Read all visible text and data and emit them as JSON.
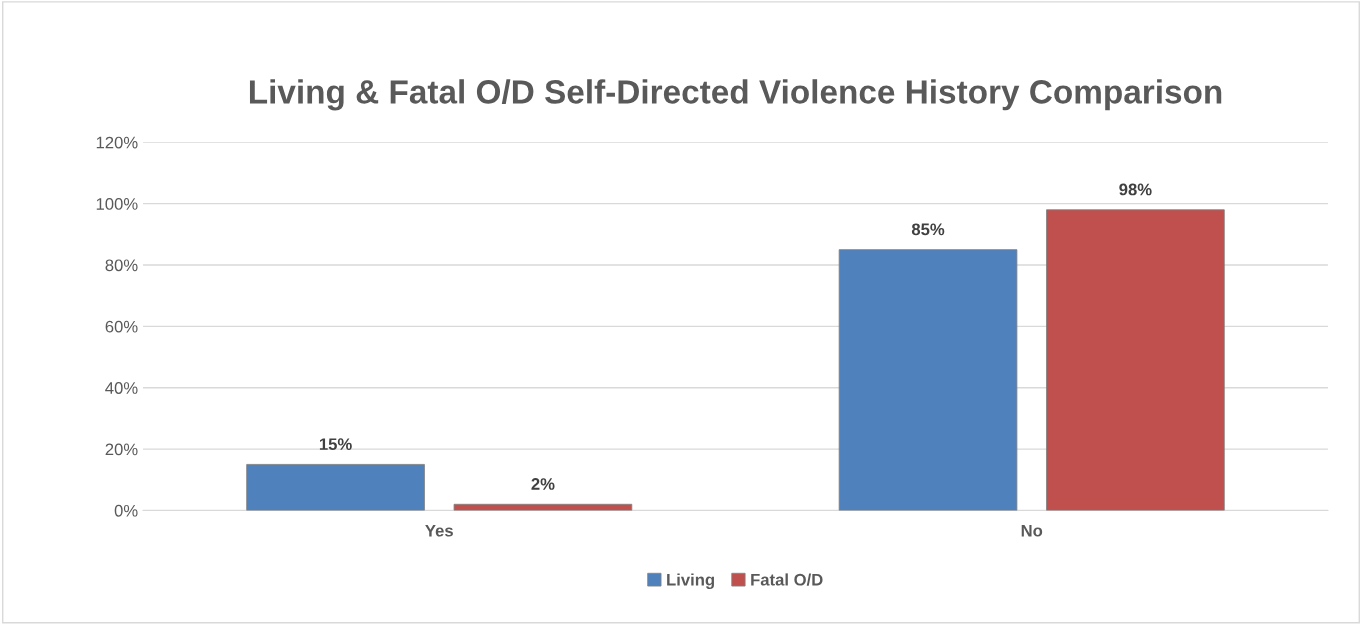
{
  "chart_data": {
    "type": "bar",
    "title": "Living & Fatal O/D Self-Directed Violence History Comparison",
    "categories": [
      "Yes",
      "No"
    ],
    "series": [
      {
        "name": "Living",
        "color": "#4f81bd",
        "values": [
          15,
          85
        ],
        "value_labels": [
          "15%",
          "85%"
        ]
      },
      {
        "name": "Fatal O/D",
        "color": "#c0504d",
        "values": [
          2,
          98
        ],
        "value_labels": [
          "2%",
          "98%"
        ]
      }
    ],
    "ylim": [
      0,
      120
    ],
    "yticks": [
      {
        "value": 0,
        "label": "0%"
      },
      {
        "value": 20,
        "label": "20%"
      },
      {
        "value": 40,
        "label": "40%"
      },
      {
        "value": 60,
        "label": "60%"
      },
      {
        "value": 80,
        "label": "80%"
      },
      {
        "value": 100,
        "label": "100%"
      },
      {
        "value": 120,
        "label": "120%"
      }
    ],
    "grid": "y",
    "legend": "bottom"
  }
}
